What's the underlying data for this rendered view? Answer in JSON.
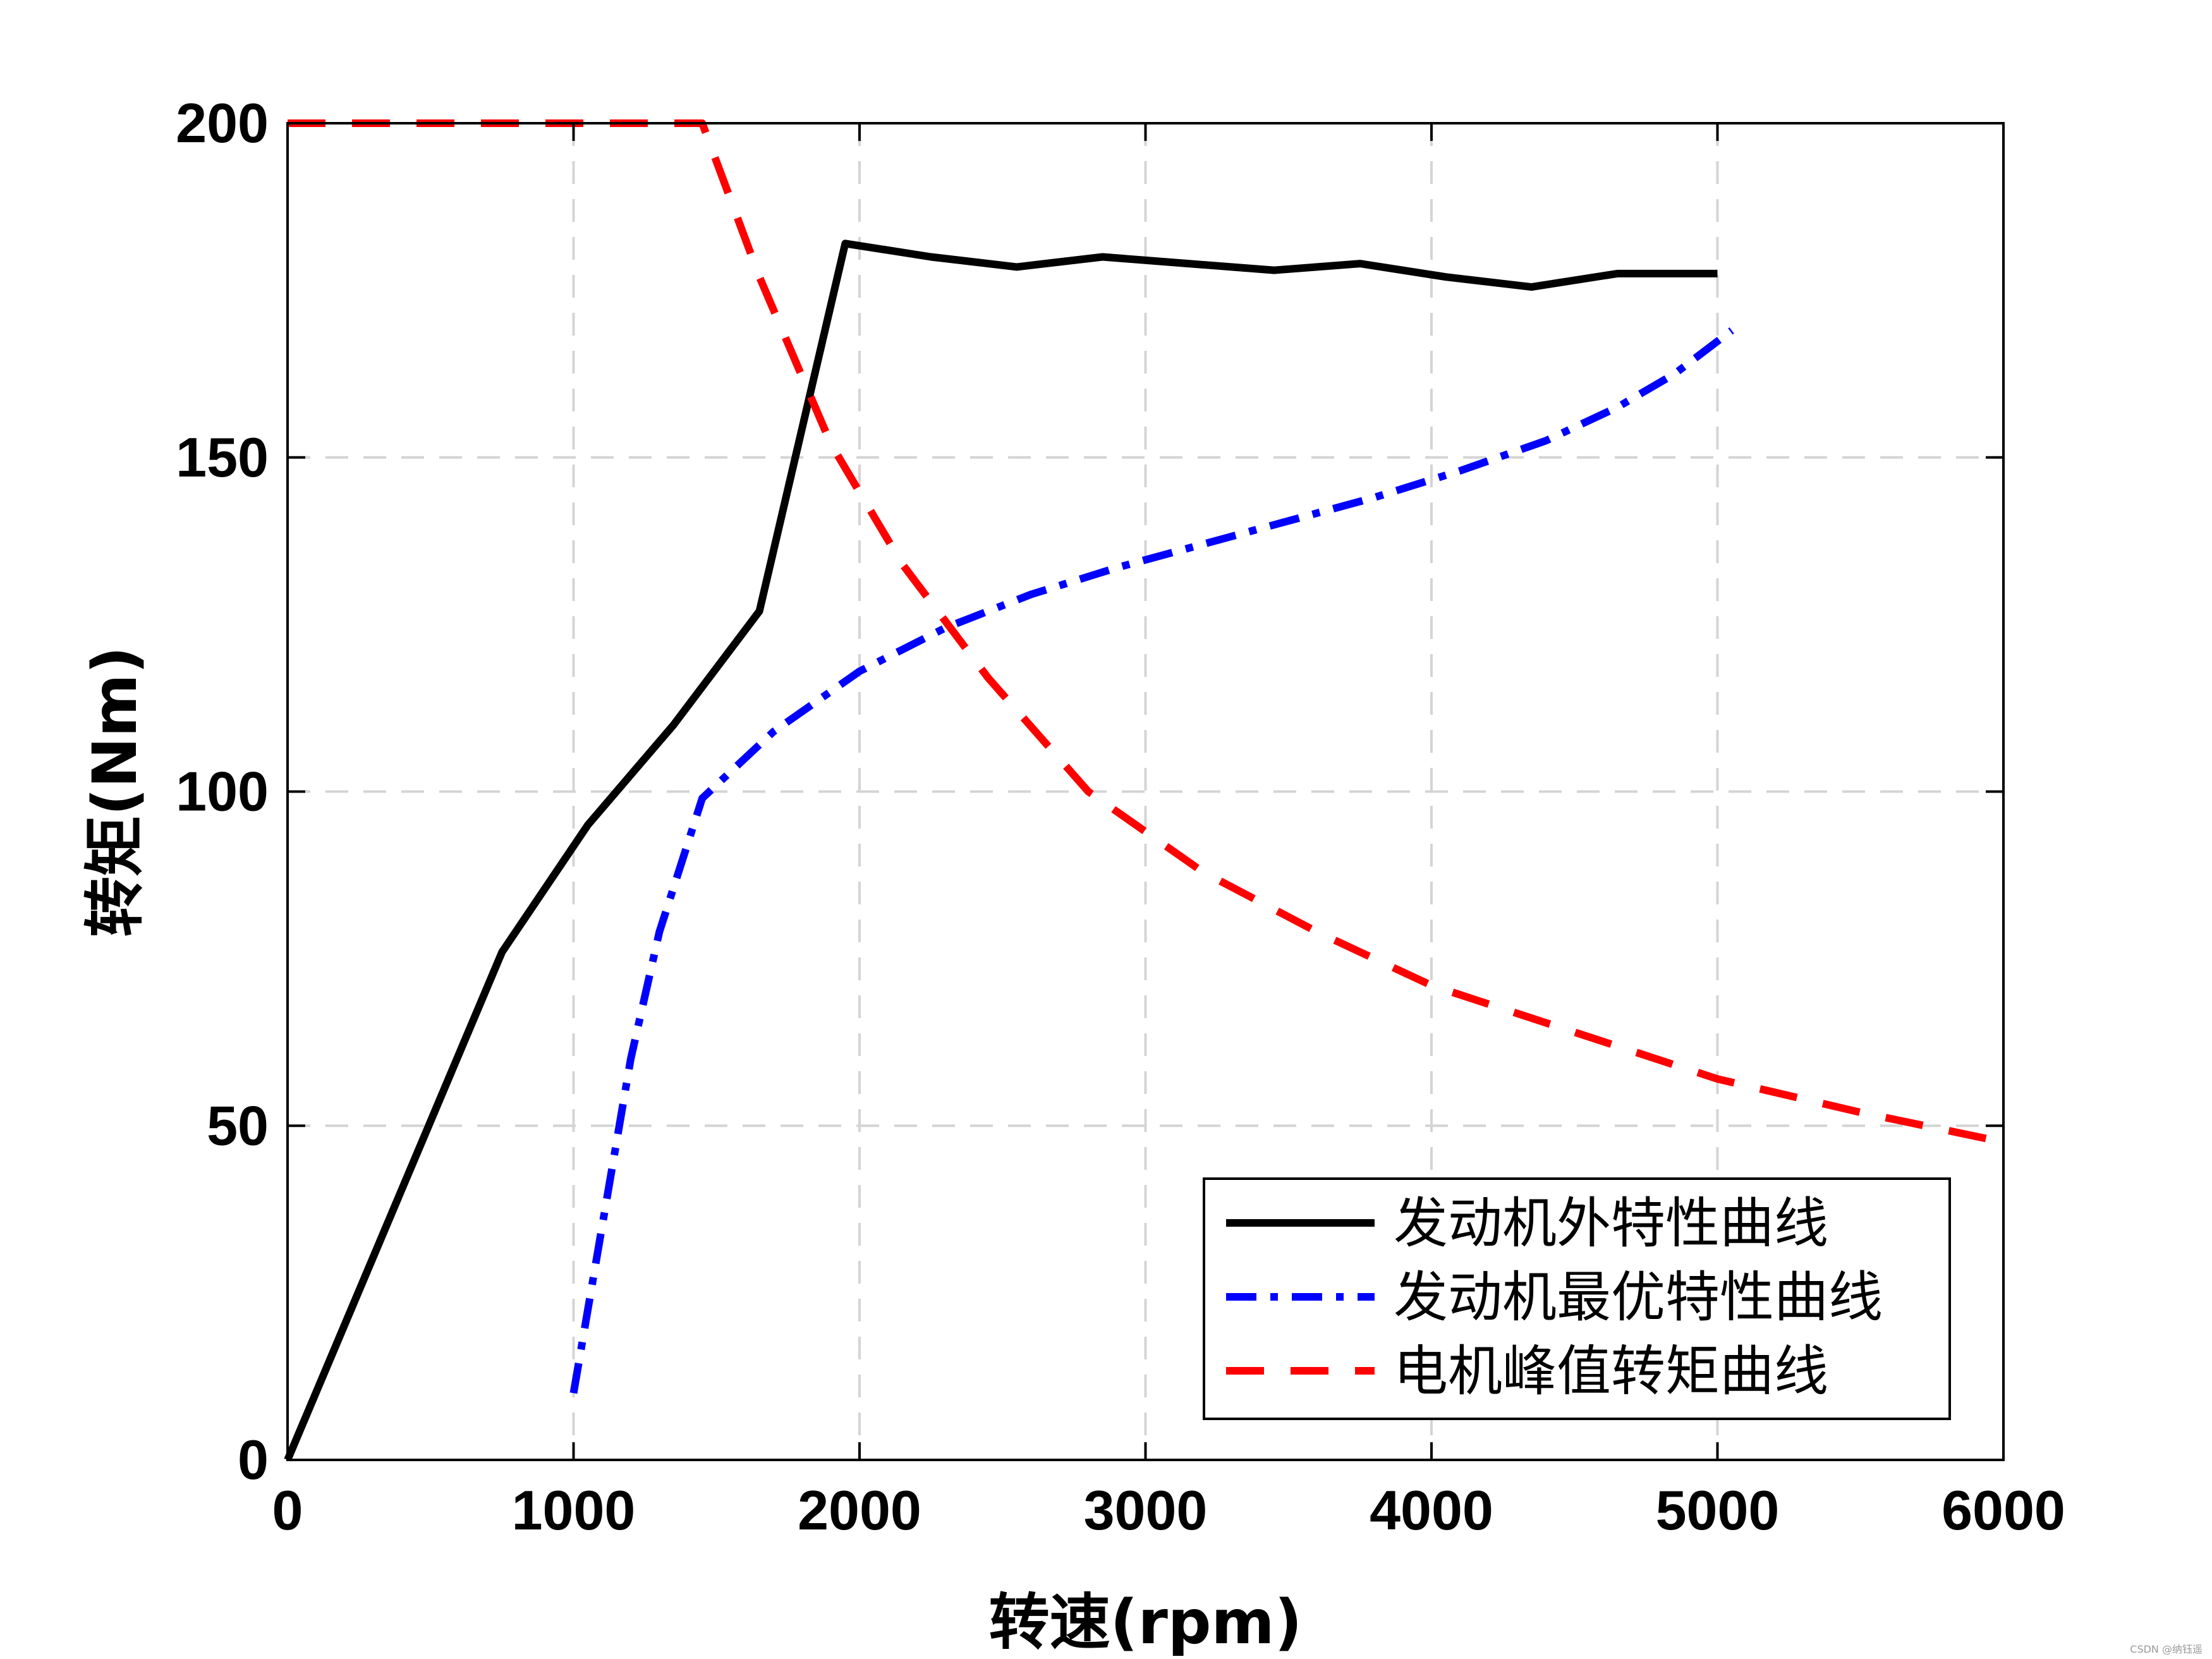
{
  "chart_data": {
    "type": "line",
    "xlabel": "转速(rpm)",
    "ylabel": "转矩(Nm)",
    "xlim": [
      0,
      6000
    ],
    "ylim": [
      0,
      200
    ],
    "xticks": [
      0,
      1000,
      2000,
      3000,
      4000,
      5000,
      6000
    ],
    "yticks": [
      0,
      50,
      100,
      150,
      200
    ],
    "grid": true,
    "legend_position": "bottom-right",
    "series": [
      {
        "name": "发动机外特性曲线",
        "color": "#000000",
        "style": "solid",
        "x": [
          0,
          750,
          1050,
          1350,
          1650,
          1950,
          2250,
          2550,
          2850,
          3150,
          3450,
          3750,
          4050,
          4350,
          4650,
          5000
        ],
        "y": [
          0,
          76,
          95,
          110,
          127,
          182,
          180,
          178.5,
          180,
          179,
          178,
          179,
          177,
          175.5,
          177.5,
          177.5
        ]
      },
      {
        "name": "发动机最优特性曲线",
        "color": "#0000ff",
        "style": "dashdot",
        "x": [
          1000,
          1100,
          1200,
          1300,
          1450,
          1700,
          2000,
          2300,
          2600,
          2900,
          3200,
          3500,
          3800,
          4100,
          4400,
          4650,
          4850,
          5050
        ],
        "y": [
          10,
          35,
          60,
          79,
          99,
          109,
          118,
          124.5,
          129.5,
          133.5,
          137,
          140.5,
          144,
          148,
          152.5,
          157.5,
          162.5,
          169
        ]
      },
      {
        "name": "电机峰值转矩曲线",
        "color": "#ff0000",
        "style": "dashed",
        "x": [
          0,
          1450,
          1650,
          1900,
          2150,
          2450,
          2800,
          3200,
          3600,
          4000,
          4500,
          5000,
          5500,
          5950
        ],
        "y": [
          200,
          200,
          177,
          152,
          134,
          117,
          100,
          88,
          79,
          71,
          64,
          57,
          52,
          48
        ]
      }
    ]
  },
  "watermark": "CSDN @纳钰遥"
}
